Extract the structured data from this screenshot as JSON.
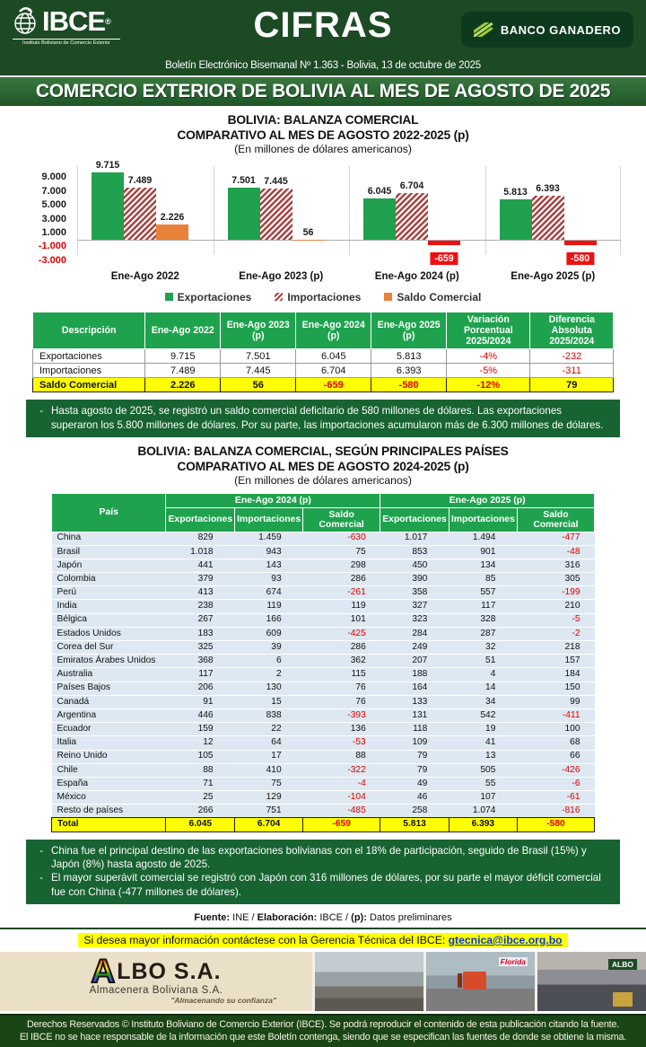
{
  "colors": {
    "header_green": "#1c4a24",
    "band_green": "#2a6632",
    "table_header_green": "#1fa24e",
    "note_green": "#176331",
    "export_green": "#1fa14d",
    "import_hatch_red": "#a94341",
    "saldo_orange": "#e8823a",
    "negative_red": "#ee1111",
    "highlight_yellow": "#ffff00",
    "row_blue": "#dde8f2",
    "link_blue": "#0a3bc9"
  },
  "header": {
    "logo_text": "IBCE",
    "logo_reg": "®",
    "logo_sub": "Instituto Boliviano de Comercio Exterior",
    "masthead": "CIFRAS",
    "sponsor": "BANCO GANADERO",
    "subtitle": "Boletín Electrónico Bisemanal Nº 1.363 - Bolivia, 13 de octubre de 2025"
  },
  "band_title": "COMERCIO EXTERIOR DE BOLIVIA AL MES DE AGOSTO DE 2025",
  "chart_section": {
    "title1": "BOLIVIA: BALANZA COMERCIAL",
    "title2": "COMPARATIVO AL MES DE AGOSTO 2022-2025 (p)",
    "title3": "(En millones de dólares americanos)"
  },
  "chart_data": {
    "type": "bar",
    "categories": [
      "Ene-Ago 2022",
      "Ene-Ago 2023 (p)",
      "Ene-Ago 2024 (p)",
      "Ene-Ago 2025 (p)"
    ],
    "series": [
      {
        "name": "Exportaciones",
        "values": [
          9715,
          7501,
          6045,
          5813
        ],
        "labels": [
          "9.715",
          "7.501",
          "6.045",
          "5.813"
        ]
      },
      {
        "name": "Importaciones",
        "values": [
          7489,
          7445,
          6704,
          6393
        ],
        "labels": [
          "7.489",
          "7.445",
          "6.704",
          "6.393"
        ]
      },
      {
        "name": "Saldo Comercial",
        "values": [
          2226,
          56,
          -659,
          -580
        ],
        "labels": [
          "2.226",
          "56",
          "-659",
          "-580"
        ]
      }
    ],
    "y_ticks": [
      {
        "v": 9000,
        "label": "9.000"
      },
      {
        "v": 7000,
        "label": "7.000"
      },
      {
        "v": 5000,
        "label": "5.000"
      },
      {
        "v": 3000,
        "label": "3.000"
      },
      {
        "v": 1000,
        "label": "1.000"
      },
      {
        "v": -1000,
        "label": "-1.000"
      },
      {
        "v": -3000,
        "label": "-3.000"
      }
    ],
    "ylim": [
      -3800,
      10700
    ],
    "grid": false,
    "legend_position": "bottom"
  },
  "table1": {
    "headers": [
      "Descripción",
      "Ene-Ago 2022",
      "Ene-Ago 2023 (p)",
      "Ene-Ago 2024 (p)",
      "Ene-Ago 2025 (p)",
      "Variación Porcentual\n2025/2024",
      "Diferencia Absoluta\n2025/2024"
    ],
    "rows": [
      {
        "label": "Exportaciones",
        "values": [
          "9.715",
          "7.501",
          "6.045",
          "5.813",
          "-4%",
          "-232"
        ]
      },
      {
        "label": "Importaciones",
        "values": [
          "7.489",
          "7.445",
          "6.704",
          "6.393",
          "-5%",
          "-311"
        ]
      }
    ],
    "total": {
      "label": "Saldo Comercial",
      "values": [
        "2.226",
        "56",
        "-659",
        "-580",
        "-12%",
        "79"
      ]
    }
  },
  "note1": {
    "items": [
      "Hasta agosto de 2025, se registró un saldo comercial deficitario de 580 millones de dólares. Las exportaciones superaron los 5.800 millones de dólares. Por su parte, las importaciones acumularon más de 6.300 millones de dólares."
    ]
  },
  "section2": {
    "title1": "BOLIVIA: BALANZA COMERCIAL, SEGÚN PRINCIPALES PAÍSES",
    "title2": "COMPARATIVO AL MES DE AGOSTO 2024-2025 (p)",
    "title3": "(En millones de dólares americanos)"
  },
  "table2": {
    "col_country": "País",
    "group_headers": [
      "Ene-Ago 2024 (p)",
      "Ene-Ago 2025 (p)"
    ],
    "sub_headers": [
      "Exportaciones",
      "Importaciones",
      "Saldo Comercial"
    ],
    "rows": [
      [
        "China",
        "829",
        "1.459",
        "-630",
        "1.017",
        "1.494",
        "-477"
      ],
      [
        "Brasil",
        "1.018",
        "943",
        "75",
        "853",
        "901",
        "-48"
      ],
      [
        "Japón",
        "441",
        "143",
        "298",
        "450",
        "134",
        "316"
      ],
      [
        "Colombia",
        "379",
        "93",
        "286",
        "390",
        "85",
        "305"
      ],
      [
        "Perú",
        "413",
        "674",
        "-261",
        "358",
        "557",
        "-199"
      ],
      [
        "India",
        "238",
        "119",
        "119",
        "327",
        "117",
        "210"
      ],
      [
        "Bélgica",
        "267",
        "166",
        "101",
        "323",
        "328",
        "-5"
      ],
      [
        "Estados Unidos",
        "183",
        "609",
        "-425",
        "284",
        "287",
        "-2"
      ],
      [
        "Corea del Sur",
        "325",
        "39",
        "286",
        "249",
        "32",
        "218"
      ],
      [
        "Emiratos Árabes Unidos",
        "368",
        "6",
        "362",
        "207",
        "51",
        "157"
      ],
      [
        "Australia",
        "117",
        "2",
        "115",
        "188",
        "4",
        "184"
      ],
      [
        "Países Bajos",
        "206",
        "130",
        "76",
        "164",
        "14",
        "150"
      ],
      [
        "Canadá",
        "91",
        "15",
        "76",
        "133",
        "34",
        "99"
      ],
      [
        "Argentina",
        "446",
        "838",
        "-393",
        "131",
        "542",
        "-411"
      ],
      [
        "Ecuador",
        "159",
        "22",
        "136",
        "118",
        "19",
        "100"
      ],
      [
        "Italia",
        "12",
        "64",
        "-53",
        "109",
        "41",
        "68"
      ],
      [
        "Reino Unido",
        "105",
        "17",
        "88",
        "79",
        "13",
        "66"
      ],
      [
        "Chile",
        "88",
        "410",
        "-322",
        "79",
        "505",
        "-426"
      ],
      [
        "España",
        "71",
        "75",
        "-4",
        "49",
        "55",
        "-6"
      ],
      [
        "México",
        "25",
        "129",
        "-104",
        "46",
        "107",
        "-61"
      ],
      [
        "Resto de países",
        "266",
        "751",
        "-485",
        "258",
        "1.074",
        "-816"
      ]
    ],
    "total": [
      "Total",
      "6.045",
      "6.704",
      "-659",
      "5.813",
      "6.393",
      "-580"
    ]
  },
  "note2": {
    "items": [
      "China fue el principal destino de las exportaciones bolivianas con el 18% de participación, seguido de Brasil (15%) y Japón (8%) hasta agosto de 2025.",
      "El mayor superávit comercial se registró con Japón con 316 millones de dólares, por su parte el mayor déficit comercial fue con China (-477 millones de dólares)."
    ]
  },
  "source_line": {
    "segments": [
      {
        "text": "Fuente:",
        "bold": true
      },
      {
        "text": " INE /  ",
        "bold": false
      },
      {
        "text": "Elaboración:",
        "bold": true
      },
      {
        "text": " IBCE / ",
        "bold": false
      },
      {
        "text": "(p):",
        "bold": true
      },
      {
        "text": " Datos preliminares",
        "bold": false
      }
    ]
  },
  "contact": {
    "prefix": "Si desea mayor información contáctese con la Gerencia Técnica del IBCE: ",
    "email": "gtecnica@ibce.org.bo"
  },
  "albo": {
    "letter": "A",
    "name": "LBO S.A.",
    "subtitle": "Almacenera Boliviana S.A.",
    "tagline": "\"Almacenando su confianza\"",
    "photo_sign_florida": "Florida",
    "photo_sign_albo": "ALBO"
  },
  "footer": {
    "lines": [
      "Derechos Reservados © Instituto Boliviano de Comercio Exterior (IBCE). Se podrá reproducir el contenido de esta publicación citando la fuente.",
      "El IBCE no se hace responsable de la información que este Boletín contenga, siendo que se especifican las fuentes de donde se obtiene la misma."
    ]
  }
}
